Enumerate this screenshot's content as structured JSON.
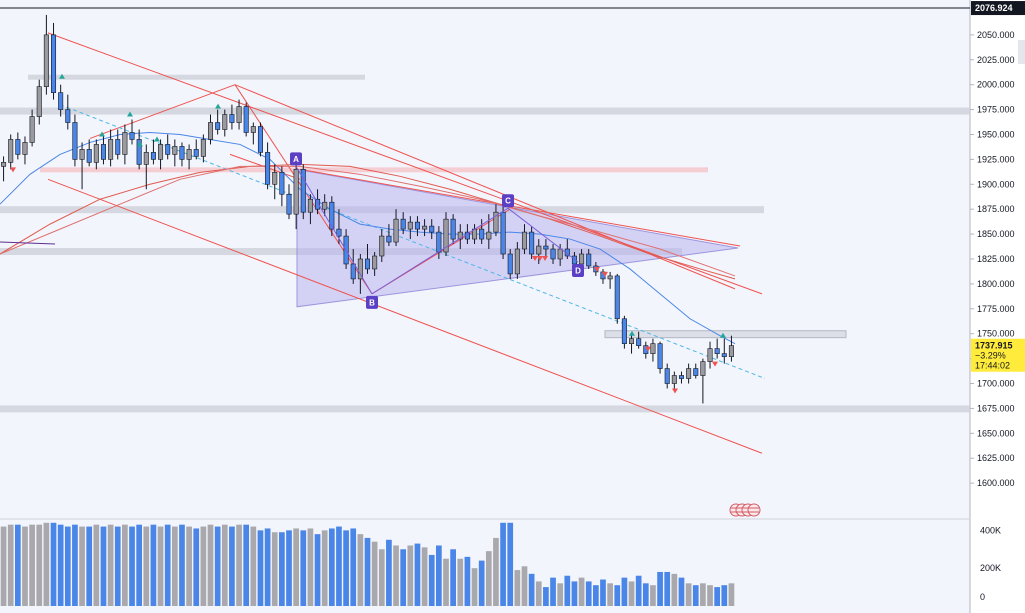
{
  "chart_data": {
    "type": "candlestick",
    "y_axis_ticks": [
      2050,
      2025,
      2000,
      1975,
      1950,
      1925,
      1900,
      1875,
      1850,
      1825,
      1800,
      1775,
      1750,
      1725,
      1700,
      1675,
      1650,
      1625,
      1600
    ],
    "y_axis_tick_labels": [
      "2050.000",
      "2025.000",
      "2000.000",
      "1975.000",
      "1950.000",
      "1925.000",
      "1900.000",
      "1875.000",
      "1850.000",
      "1825.000",
      "1800.000",
      "1775.000",
      "1750.000",
      "1725.000",
      "1700.000",
      "1675.000",
      "1650.000",
      "1625.000",
      "1600.000"
    ],
    "ylim": [
      1570,
      2085
    ],
    "volume_ylim": [
      0,
      460000
    ],
    "volume_ticks": [
      400000,
      200000,
      0
    ],
    "volume_tick_labels": [
      "400K",
      "200K",
      "0"
    ],
    "top_price_line": {
      "value": 2076.924,
      "label": "2076.924"
    },
    "last_price": {
      "value": 1737.915,
      "label": "1737.915",
      "change": "−3.29%",
      "countdown": "17:44:02",
      "color": "#ffeb3b"
    },
    "candles": [
      [
        1918,
        1928,
        1903,
        1922
      ],
      [
        1922,
        1950,
        1915,
        1945
      ],
      [
        1945,
        1952,
        1925,
        1930
      ],
      [
        1930,
        1948,
        1920,
        1942
      ],
      [
        1942,
        1975,
        1938,
        1968
      ],
      [
        1968,
        2005,
        1960,
        1998
      ],
      [
        1998,
        2070,
        1990,
        2050
      ],
      [
        2050,
        2062,
        1985,
        1992
      ],
      [
        1992,
        2000,
        1968,
        1975
      ],
      [
        1975,
        1990,
        1955,
        1962
      ],
      [
        1962,
        1970,
        1918,
        1925
      ],
      [
        1925,
        1942,
        1895,
        1935
      ],
      [
        1935,
        1945,
        1918,
        1922
      ],
      [
        1922,
        1945,
        1915,
        1940
      ],
      [
        1940,
        1950,
        1920,
        1925
      ],
      [
        1925,
        1955,
        1918,
        1945
      ],
      [
        1945,
        1955,
        1925,
        1930
      ],
      [
        1930,
        1960,
        1920,
        1952
      ],
      [
        1952,
        1965,
        1940,
        1945
      ],
      [
        1945,
        1955,
        1915,
        1920
      ],
      [
        1920,
        1940,
        1895,
        1932
      ],
      [
        1932,
        1945,
        1920,
        1925
      ],
      [
        1925,
        1945,
        1915,
        1940
      ],
      [
        1940,
        1950,
        1925,
        1930
      ],
      [
        1930,
        1945,
        1918,
        1938
      ],
      [
        1938,
        1942,
        1918,
        1925
      ],
      [
        1925,
        1940,
        1915,
        1935
      ],
      [
        1935,
        1945,
        1925,
        1928
      ],
      [
        1928,
        1950,
        1922,
        1945
      ],
      [
        1945,
        1970,
        1940,
        1962
      ],
      [
        1962,
        1975,
        1950,
        1955
      ],
      [
        1955,
        1975,
        1948,
        1970
      ],
      [
        1970,
        1980,
        1955,
        1962
      ],
      [
        1962,
        1985,
        1955,
        1978
      ],
      [
        1978,
        1982,
        1948,
        1952
      ],
      [
        1952,
        1962,
        1940,
        1958
      ],
      [
        1958,
        1962,
        1928,
        1932
      ],
      [
        1932,
        1942,
        1895,
        1900
      ],
      [
        1900,
        1920,
        1885,
        1912
      ],
      [
        1912,
        1918,
        1878,
        1890
      ],
      [
        1890,
        1900,
        1865,
        1870
      ],
      [
        1870,
        1925,
        1855,
        1915
      ],
      [
        1915,
        1920,
        1865,
        1872
      ],
      [
        1872,
        1890,
        1860,
        1885
      ],
      [
        1885,
        1895,
        1870,
        1875
      ],
      [
        1875,
        1890,
        1868,
        1882
      ],
      [
        1882,
        1888,
        1848,
        1855
      ],
      [
        1855,
        1875,
        1840,
        1848
      ],
      [
        1848,
        1855,
        1815,
        1820
      ],
      [
        1820,
        1835,
        1800,
        1805
      ],
      [
        1805,
        1830,
        1790,
        1825
      ],
      [
        1825,
        1840,
        1810,
        1815
      ],
      [
        1815,
        1832,
        1808,
        1828
      ],
      [
        1828,
        1855,
        1822,
        1848
      ],
      [
        1848,
        1860,
        1838,
        1842
      ],
      [
        1842,
        1875,
        1838,
        1865
      ],
      [
        1865,
        1872,
        1850,
        1855
      ],
      [
        1855,
        1868,
        1845,
        1862
      ],
      [
        1862,
        1868,
        1848,
        1855
      ],
      [
        1855,
        1865,
        1848,
        1858
      ],
      [
        1858,
        1865,
        1845,
        1852
      ],
      [
        1852,
        1858,
        1825,
        1832
      ],
      [
        1832,
        1872,
        1828,
        1865
      ],
      [
        1865,
        1870,
        1840,
        1845
      ],
      [
        1845,
        1860,
        1835,
        1852
      ],
      [
        1852,
        1860,
        1840,
        1845
      ],
      [
        1845,
        1860,
        1840,
        1855
      ],
      [
        1855,
        1865,
        1840,
        1845
      ],
      [
        1845,
        1870,
        1835,
        1852
      ],
      [
        1852,
        1880,
        1848,
        1872
      ],
      [
        1872,
        1878,
        1825,
        1830
      ],
      [
        1830,
        1835,
        1805,
        1810
      ],
      [
        1810,
        1842,
        1805,
        1835
      ],
      [
        1835,
        1860,
        1830,
        1852
      ],
      [
        1852,
        1858,
        1825,
        1830
      ],
      [
        1830,
        1845,
        1820,
        1838
      ],
      [
        1838,
        1845,
        1828,
        1835
      ],
      [
        1835,
        1840,
        1820,
        1825
      ],
      [
        1825,
        1840,
        1818,
        1835
      ],
      [
        1835,
        1845,
        1825,
        1828
      ],
      [
        1828,
        1832,
        1815,
        1820
      ],
      [
        1820,
        1835,
        1815,
        1830
      ],
      [
        1830,
        1835,
        1815,
        1818
      ],
      [
        1818,
        1822,
        1808,
        1812
      ],
      [
        1812,
        1815,
        1800,
        1805
      ],
      [
        1805,
        1812,
        1795,
        1808
      ],
      [
        1808,
        1810,
        1760,
        1765
      ],
      [
        1765,
        1768,
        1735,
        1740
      ],
      [
        1740,
        1750,
        1730,
        1745
      ],
      [
        1745,
        1752,
        1735,
        1738
      ],
      [
        1738,
        1742,
        1725,
        1730
      ],
      [
        1730,
        1745,
        1722,
        1740
      ],
      [
        1740,
        1742,
        1710,
        1715
      ],
      [
        1715,
        1720,
        1695,
        1700
      ],
      [
        1700,
        1712,
        1695,
        1708
      ],
      [
        1708,
        1712,
        1700,
        1705
      ],
      [
        1705,
        1720,
        1700,
        1715
      ],
      [
        1715,
        1720,
        1705,
        1708
      ],
      [
        1708,
        1725,
        1680,
        1722
      ],
      [
        1722,
        1742,
        1715,
        1735
      ],
      [
        1735,
        1745,
        1725,
        1730
      ],
      [
        1730,
        1745,
        1720,
        1727
      ],
      [
        1727,
        1748,
        1722,
        1738
      ]
    ],
    "candle_x_range": [
      0,
      735
    ],
    "volume": [
      420000,
      430000,
      430000,
      420000,
      430000,
      430000,
      440000,
      440000,
      430000,
      420000,
      430000,
      420000,
      420000,
      430000,
      420000,
      430000,
      420000,
      430000,
      420000,
      430000,
      420000,
      430000,
      420000,
      430000,
      420000,
      430000,
      420000,
      410000,
      420000,
      430000,
      420000,
      430000,
      420000,
      430000,
      430000,
      420000,
      400000,
      410000,
      390000,
      390000,
      400000,
      410000,
      400000,
      410000,
      380000,
      400000,
      410000,
      420000,
      400000,
      410000,
      380000,
      360000,
      340000,
      300000,
      350000,
      320000,
      300000,
      320000,
      330000,
      310000,
      270000,
      320000,
      250000,
      300000,
      250000,
      260000,
      200000,
      240000,
      290000,
      360000,
      440000,
      440000,
      190000,
      210000,
      170000,
      130000,
      100000,
      150000,
      120000,
      160000,
      130000,
      150000,
      130000,
      110000,
      140000,
      120000,
      110000,
      150000,
      130000,
      160000,
      120000,
      110000,
      180000,
      180000,
      170000,
      150000,
      120000,
      110000,
      120000,
      110000,
      100000,
      110000,
      120000
    ],
    "series": [
      {
        "color": "#4a86e8",
        "points": [
          [
            0,
            1880
          ],
          [
            30,
            1910
          ],
          [
            60,
            1930
          ],
          [
            90,
            1942
          ],
          [
            120,
            1950
          ],
          [
            150,
            1952
          ],
          [
            180,
            1950
          ],
          [
            210,
            1945
          ],
          [
            240,
            1940
          ],
          [
            270,
            1925
          ],
          [
            300,
            1895
          ],
          [
            330,
            1875
          ],
          [
            360,
            1860
          ],
          [
            390,
            1855
          ],
          [
            420,
            1852
          ],
          [
            450,
            1850
          ],
          [
            480,
            1850
          ],
          [
            510,
            1852
          ],
          [
            540,
            1850
          ],
          [
            570,
            1845
          ],
          [
            600,
            1835
          ],
          [
            630,
            1815
          ],
          [
            660,
            1790
          ],
          [
            690,
            1765
          ],
          [
            720,
            1748
          ],
          [
            735,
            1740
          ]
        ]
      },
      {
        "color": "#e05a4e",
        "points": [
          [
            0,
            1830
          ],
          [
            50,
            1860
          ],
          [
            100,
            1885
          ],
          [
            150,
            1900
          ],
          [
            200,
            1912
          ],
          [
            250,
            1918
          ],
          [
            300,
            1920
          ],
          [
            350,
            1918
          ],
          [
            400,
            1908
          ],
          [
            450,
            1895
          ],
          [
            500,
            1880
          ],
          [
            550,
            1865
          ],
          [
            600,
            1848
          ],
          [
            650,
            1830
          ],
          [
            700,
            1815
          ],
          [
            735,
            1805
          ]
        ]
      },
      {
        "color": "#e07070",
        "points": [
          [
            0,
            1830
          ],
          [
            60,
            1855
          ],
          [
            120,
            1880
          ],
          [
            180,
            1905
          ],
          [
            240,
            1918
          ],
          [
            300,
            1918
          ],
          [
            360,
            1910
          ],
          [
            420,
            1898
          ],
          [
            480,
            1885
          ],
          [
            540,
            1868
          ],
          [
            600,
            1852
          ],
          [
            660,
            1835
          ],
          [
            735,
            1808
          ]
        ]
      },
      {
        "color": "#5c2e91",
        "points": [
          [
            0,
            1842
          ],
          [
            55,
            1840
          ]
        ]
      }
    ],
    "trend_lines": [
      {
        "color": "#ef5350",
        "from": [
          48,
          2052
        ],
        "to": [
          762,
          1790
        ]
      },
      {
        "color": "#ef5350",
        "from": [
          48,
          1905
        ],
        "to": [
          762,
          1630
        ]
      },
      {
        "color": "#ef5350",
        "from": [
          90,
          1946
        ],
        "to": [
          235,
          2000
        ]
      },
      {
        "color": "#ef5350",
        "from": [
          235,
          2000
        ],
        "to": [
          372,
          1790
        ]
      },
      {
        "color": "#ef5350",
        "from": [
          372,
          1790
        ],
        "to": [
          510,
          1875
        ]
      },
      {
        "color": "#ef5350",
        "from": [
          235,
          2000
        ],
        "to": [
          735,
          1795
        ]
      },
      {
        "color": "#ef5350",
        "from": [
          300,
          1915
        ],
        "to": [
          740,
          1838
        ]
      },
      {
        "color": "#ef5350",
        "from": [
          230,
          1930
        ],
        "to": [
          300,
          1905
        ]
      },
      {
        "color": "#4fb7e6",
        "from": [
          60,
          1980
        ],
        "to": [
          765,
          1705
        ],
        "dash": true
      }
    ],
    "zones": [
      {
        "y1": 2010,
        "y2": 2005,
        "x1": 28,
        "x2": 365,
        "color": "#cfd2da"
      },
      {
        "y1": 1977,
        "y2": 1970,
        "x1": 0,
        "x2": 970,
        "color": "#cfd2da"
      },
      {
        "y1": 1917,
        "y2": 1912,
        "x1": 40,
        "x2": 708,
        "color": "#f4c7cb"
      },
      {
        "y1": 1878,
        "y2": 1871,
        "x1": 0,
        "x2": 764,
        "color": "#cfd2da"
      },
      {
        "y1": 1836,
        "y2": 1829,
        "x1": 0,
        "x2": 682,
        "color": "#cfd2da"
      },
      {
        "y1": 1753,
        "y2": 1746,
        "x1": 605,
        "x2": 846,
        "color": "#d9dce4",
        "stroke": "#a8adb8"
      },
      {
        "y1": 1678,
        "y2": 1671,
        "x1": 0,
        "x2": 970,
        "color": "#cfd2da"
      }
    ],
    "triangle": {
      "points": [
        [
          297,
          1915
        ],
        [
          297,
          1777
        ],
        [
          738,
          1836
        ]
      ],
      "fill": "#b8b5ee",
      "stroke": "#9c95dd"
    },
    "harmonic": {
      "points": [
        {
          "label": "A",
          "x": 296,
          "y": 1918
        },
        {
          "label": "B",
          "x": 372,
          "y": 1790
        },
        {
          "label": "C",
          "x": 508,
          "y": 1876
        },
        {
          "label": "D",
          "x": 578,
          "y": 1822
        }
      ],
      "color": "#7b5ed6",
      "label_color": "#5b3fc4"
    },
    "signals": [
      {
        "x": 13,
        "value": 1915,
        "dir": "down"
      },
      {
        "x": 62,
        "value": 2008,
        "dir": "up"
      },
      {
        "x": 130,
        "value": 1970,
        "dir": "up"
      },
      {
        "x": 102,
        "value": 1950,
        "dir": "up"
      },
      {
        "x": 140,
        "value": 1940,
        "dir": "up"
      },
      {
        "x": 157,
        "value": 1945,
        "dir": "up"
      },
      {
        "x": 218,
        "value": 1978,
        "dir": "up"
      },
      {
        "x": 540,
        "value": 1826,
        "dir": "down"
      },
      {
        "x": 535,
        "value": 1826,
        "dir": "down"
      },
      {
        "x": 545,
        "value": 1826,
        "dir": "down"
      },
      {
        "x": 597,
        "value": 1815,
        "dir": "down"
      },
      {
        "x": 605,
        "value": 1810,
        "dir": "down"
      },
      {
        "x": 632,
        "value": 1750,
        "dir": "up"
      },
      {
        "x": 648,
        "value": 1735,
        "dir": "down"
      },
      {
        "x": 675,
        "value": 1693,
        "dir": "down"
      },
      {
        "x": 715,
        "value": 1720,
        "dir": "down"
      },
      {
        "x": 723,
        "value": 1748,
        "dir": "up"
      }
    ]
  }
}
